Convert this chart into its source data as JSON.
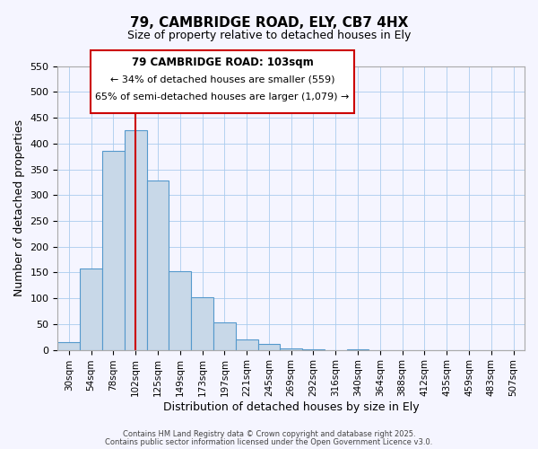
{
  "title": "79, CAMBRIDGE ROAD, ELY, CB7 4HX",
  "subtitle": "Size of property relative to detached houses in Ely",
  "xlabel": "Distribution of detached houses by size in Ely",
  "ylabel": "Number of detached properties",
  "bin_labels": [
    "30sqm",
    "54sqm",
    "78sqm",
    "102sqm",
    "125sqm",
    "149sqm",
    "173sqm",
    "197sqm",
    "221sqm",
    "245sqm",
    "269sqm",
    "292sqm",
    "316sqm",
    "340sqm",
    "364sqm",
    "388sqm",
    "412sqm",
    "435sqm",
    "459sqm",
    "483sqm",
    "507sqm"
  ],
  "bar_values": [
    15,
    157,
    385,
    425,
    328,
    153,
    102,
    54,
    21,
    11,
    2,
    1,
    0,
    1,
    0,
    0,
    0,
    0,
    0,
    0,
    0
  ],
  "bar_color": "#c8d8e8",
  "bar_edge_color": "#5599cc",
  "vline_x_index": 3,
  "vline_color": "#cc0000",
  "ylim": [
    0,
    550
  ],
  "yticks": [
    0,
    50,
    100,
    150,
    200,
    250,
    300,
    350,
    400,
    450,
    500,
    550
  ],
  "annotation_text_line1": "79 CAMBRIDGE ROAD: 103sqm",
  "annotation_text_line2": "← 34% of detached houses are smaller (559)",
  "annotation_text_line3": "65% of semi-detached houses are larger (1,079) →",
  "footnote1": "Contains HM Land Registry data © Crown copyright and database right 2025.",
  "footnote2": "Contains public sector information licensed under the Open Government Licence v3.0.",
  "background_color": "#f5f5ff",
  "grid_color": "#aaccee",
  "annotation_box_facecolor": "white",
  "annotation_box_edgecolor": "#cc0000"
}
